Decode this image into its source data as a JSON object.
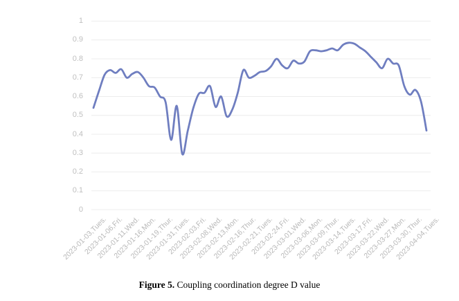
{
  "figure": {
    "caption_label": "Figure 5.",
    "caption_text": " Coupling coordination degree D value"
  },
  "chart_data": {
    "type": "line",
    "title": "",
    "xlabel": "",
    "ylabel": "",
    "ylim": [
      0,
      1
    ],
    "yticks": [
      0,
      0.1,
      0.2,
      0.3,
      0.4,
      0.5,
      0.6,
      0.7,
      0.8,
      0.9,
      1
    ],
    "grid": "horizontal-only",
    "legend": "none",
    "x_tick_labels": [
      "2023-01-03,Tues.",
      "2023-01-06,Fri.",
      "2023-01-11,Wed.",
      "2023-01-16,Mon.",
      "2023-01-19,Thur.",
      "2023-01-31,Tues.",
      "2023-02-03,Fri.",
      "2023-02-08,Wed.",
      "2023-02-13,Mon.",
      "2023-02-16,Thur.",
      "2023-02-21,Tues.",
      "2023-02-24,Fri.",
      "2023-03-01,Wed.",
      "2023-03-06,Mon.",
      "2023-03-09,Thur.",
      "2023-03-14,Tues.",
      "2023-03-17,Fri.",
      "2023-03-22,Wed.",
      "2023-03-27,Mon.",
      "2023-03-30,Thur.",
      "2023-04-04,Tues."
    ],
    "label_every": 3,
    "series": [
      {
        "name": "Coupling coordination degree D value",
        "values": [
          0.54,
          0.63,
          0.715,
          0.74,
          0.725,
          0.745,
          0.7,
          0.72,
          0.73,
          0.7,
          0.655,
          0.648,
          0.6,
          0.57,
          0.37,
          0.55,
          0.295,
          0.42,
          0.54,
          0.615,
          0.62,
          0.655,
          0.545,
          0.6,
          0.495,
          0.53,
          0.62,
          0.74,
          0.7,
          0.71,
          0.73,
          0.735,
          0.76,
          0.8,
          0.765,
          0.75,
          0.79,
          0.775,
          0.785,
          0.84,
          0.845,
          0.84,
          0.845,
          0.855,
          0.845,
          0.875,
          0.885,
          0.88,
          0.86,
          0.84,
          0.81,
          0.78,
          0.75,
          0.8,
          0.775,
          0.765,
          0.655,
          0.61,
          0.635,
          0.575,
          0.42
        ]
      }
    ],
    "colors": {
      "line": "#6F7EC0",
      "grid": "#ececec",
      "y_tick_text": "#bfbfbf",
      "x_tick_text": "#b8b8b8",
      "background": "#ffffff"
    }
  }
}
